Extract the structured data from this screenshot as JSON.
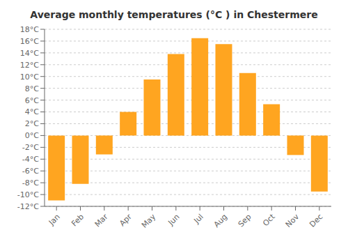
{
  "chart_data": {
    "type": "bar",
    "title": "Average monthly temperatures (°C ) in Chestermere",
    "categories": [
      "Jan",
      "Feb",
      "Mar",
      "Apr",
      "May",
      "Jun",
      "Jul",
      "Aug",
      "Sep",
      "Oct",
      "Nov",
      "Dec"
    ],
    "values": [
      -11,
      -8.2,
      -3.2,
      4.0,
      9.5,
      13.8,
      16.5,
      15.5,
      10.6,
      5.3,
      -3.3,
      -9.5
    ],
    "color": "#FFA520",
    "ylim": [
      -12,
      18
    ],
    "yticks": [
      {
        "value": -12,
        "label": "-12°C"
      },
      {
        "value": -10,
        "label": "-10°C"
      },
      {
        "value": -8,
        "label": "-8°C"
      },
      {
        "value": -6,
        "label": "-6°C"
      },
      {
        "value": -4,
        "label": "-4°C"
      },
      {
        "value": -2,
        "label": "-2°C"
      },
      {
        "value": 0,
        "label": "0°C"
      },
      {
        "value": 2,
        "label": "2°C"
      },
      {
        "value": 4,
        "label": "4°C"
      },
      {
        "value": 6,
        "label": "6°C"
      },
      {
        "value": 8,
        "label": "8°C"
      },
      {
        "value": 10,
        "label": "10°C"
      },
      {
        "value": 12,
        "label": "12°C"
      },
      {
        "value": 14,
        "label": "14°C"
      },
      {
        "value": 16,
        "label": "16°C"
      },
      {
        "value": 18,
        "label": "18°C"
      }
    ],
    "grid": true
  }
}
